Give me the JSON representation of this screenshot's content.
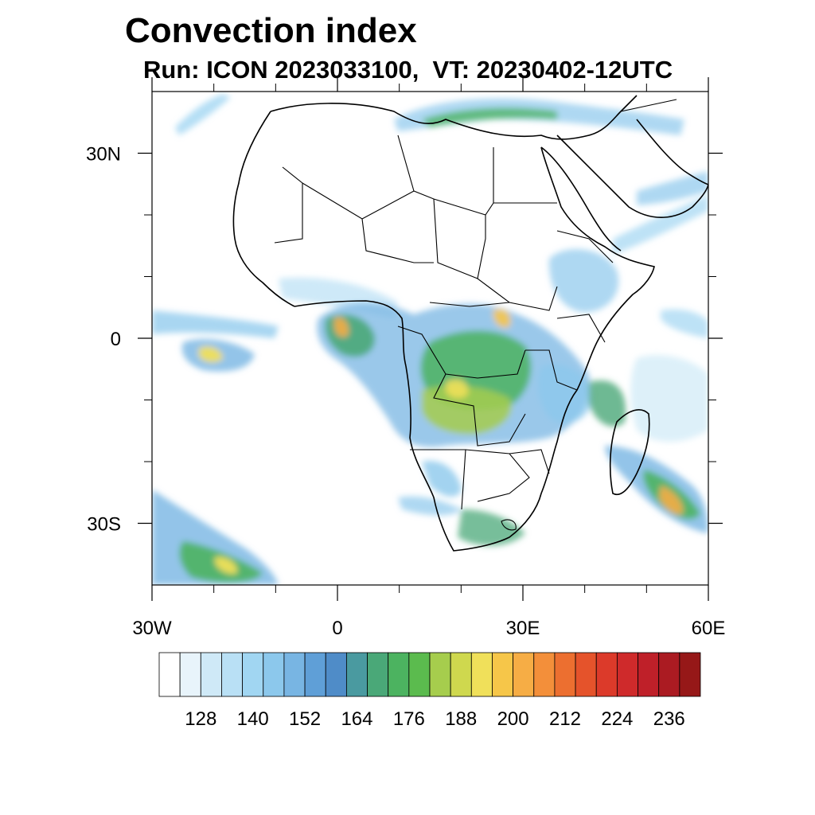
{
  "title": "Convection index",
  "subtitle": "Run: ICON 2023033100,  VT: 20230402-12UTC",
  "map": {
    "region": "Africa",
    "lon_range": [
      -30,
      60
    ],
    "lat_range": [
      -40,
      40
    ],
    "lat_ticks": [
      {
        "value": 30,
        "label": "30N"
      },
      {
        "value": 0,
        "label": "0"
      },
      {
        "value": -30,
        "label": "30S"
      }
    ],
    "lon_ticks": [
      {
        "value": -30,
        "label": "30W"
      },
      {
        "value": 0,
        "label": "0"
      },
      {
        "value": 30,
        "label": "30E"
      },
      {
        "value": 60,
        "label": "60E"
      }
    ],
    "minor_step_deg": 10
  },
  "colorbar": {
    "colors": [
      "#ffffff",
      "#e8f4fb",
      "#cfe9f7",
      "#b9e0f5",
      "#a1d6f2",
      "#8cc8ec",
      "#78b5e3",
      "#5f9fd7",
      "#4f8cc8",
      "#4a9aa0",
      "#4aa878",
      "#4cb360",
      "#5bbb4e",
      "#a6cd4d",
      "#cfd84e",
      "#f0e05a",
      "#f6c649",
      "#f6ad45",
      "#f38f3a",
      "#ec6f30",
      "#e5532b",
      "#dc3a2a",
      "#cf2a2b",
      "#bf2029",
      "#ab1b22",
      "#961818"
    ],
    "labels": [
      "128",
      "140",
      "152",
      "164",
      "176",
      "188",
      "200",
      "212",
      "224",
      "236"
    ]
  }
}
